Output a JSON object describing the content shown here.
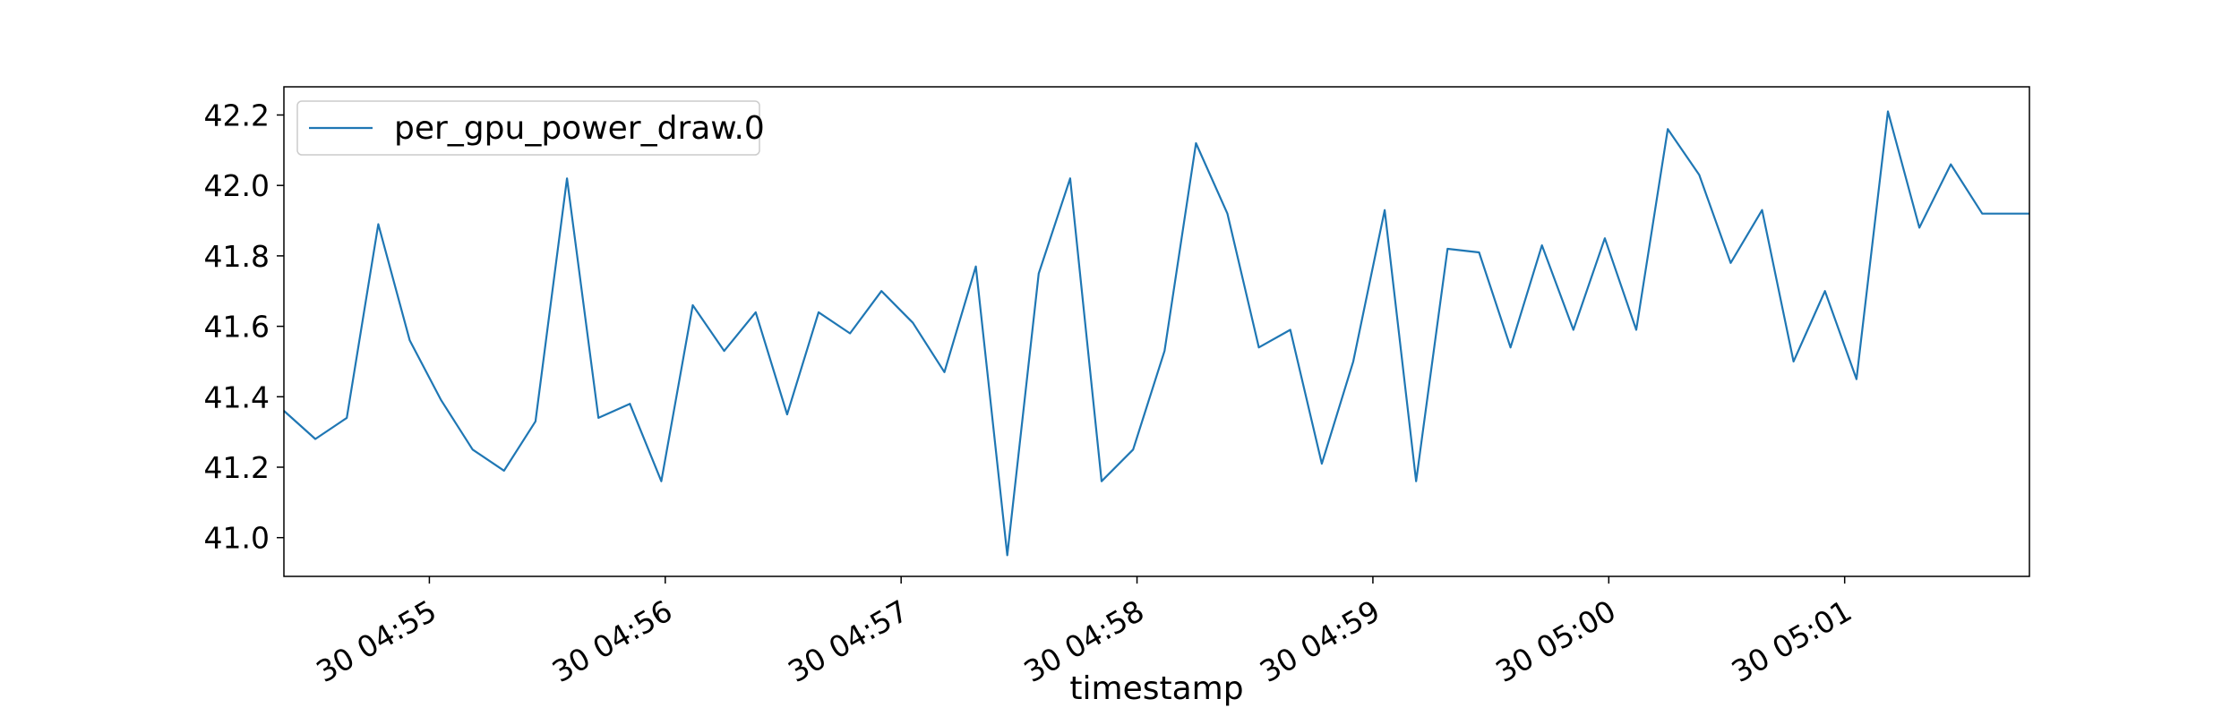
{
  "chart_data": {
    "type": "line",
    "title": "",
    "xlabel": "timestamp",
    "ylabel": "",
    "ylim": [
      40.89,
      42.28
    ],
    "y_ticks": [
      41.0,
      41.2,
      41.4,
      41.6,
      41.8,
      42.0,
      42.2
    ],
    "y_tick_labels": [
      "41.0",
      "41.2",
      "41.4",
      "41.6",
      "41.8",
      "42.0",
      "42.2"
    ],
    "xlim": [
      "04:54:23",
      "05:01:47"
    ],
    "x_ticks": [
      "04:55",
      "04:56",
      "04:57",
      "04:58",
      "04:59",
      "05:00",
      "05:01"
    ],
    "x_tick_labels": [
      "30 04:55",
      "30 04:56",
      "30 04:57",
      "30 04:58",
      "30 04:59",
      "30 05:00",
      "30 05:01"
    ],
    "grid": false,
    "legend_position": "top-left",
    "series": [
      {
        "name": "per_gpu_power_draw.0",
        "color": "#1f77b4",
        "x": [
          "04:54:23",
          "04:54:31",
          "04:54:39",
          "04:54:47",
          "04:54:55",
          "04:55:03",
          "04:55:11",
          "04:55:19",
          "04:55:27",
          "04:55:35",
          "04:55:43",
          "04:55:51",
          "04:55:59",
          "04:56:07",
          "04:56:15",
          "04:56:23",
          "04:56:31",
          "04:56:39",
          "04:56:47",
          "04:56:55",
          "04:57:03",
          "04:57:11",
          "04:57:19",
          "04:57:27",
          "04:57:35",
          "04:57:43",
          "04:57:51",
          "04:57:59",
          "04:58:07",
          "04:58:15",
          "04:58:23",
          "04:58:31",
          "04:58:39",
          "04:58:47",
          "04:58:55",
          "04:59:03",
          "04:59:11",
          "04:59:19",
          "04:59:27",
          "04:59:35",
          "04:59:43",
          "04:59:51",
          "04:59:59",
          "05:00:07",
          "05:00:15",
          "05:00:23",
          "05:00:31",
          "05:00:39",
          "05:00:47",
          "05:00:55",
          "05:01:03",
          "05:01:11",
          "05:01:19",
          "05:01:27",
          "05:01:35",
          "05:01:43",
          "05:01:47"
        ],
        "y": [
          41.36,
          41.28,
          41.34,
          41.89,
          41.56,
          41.39,
          41.25,
          41.19,
          41.33,
          42.02,
          41.34,
          41.38,
          41.16,
          41.66,
          41.53,
          41.64,
          41.35,
          41.64,
          41.58,
          41.7,
          41.61,
          41.47,
          41.77,
          40.95,
          41.75,
          42.02,
          41.16,
          41.25,
          41.53,
          42.12,
          41.92,
          41.54,
          41.59,
          41.21,
          41.5,
          41.93,
          41.16,
          41.82,
          41.81,
          41.54,
          41.83,
          41.59,
          41.85,
          41.59,
          42.16,
          42.03,
          41.78,
          41.93,
          41.5,
          41.7,
          41.45,
          42.21,
          41.88,
          42.06,
          41.92,
          41.92,
          41.92
        ]
      }
    ]
  }
}
